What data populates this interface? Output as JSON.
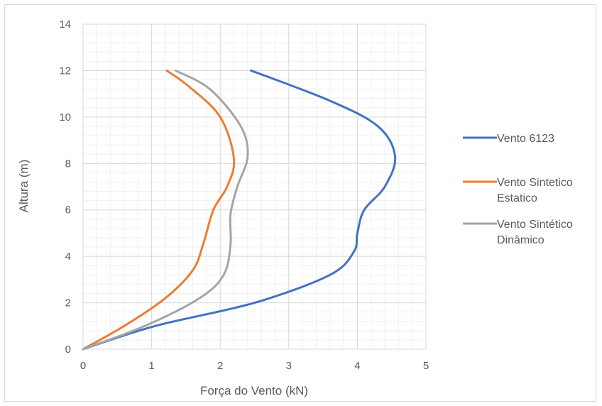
{
  "chart_data": {
    "type": "line",
    "title": "",
    "xlabel": "Força do Vento (kN)",
    "ylabel": "Altura (m)",
    "xlim": [
      0,
      5
    ],
    "ylim": [
      0,
      14
    ],
    "xticks": [
      "0",
      "1",
      "2",
      "3",
      "4",
      "5"
    ],
    "yticks": [
      "0",
      "2",
      "4",
      "6",
      "8",
      "10",
      "12",
      "14"
    ],
    "grid": true,
    "minor_grid": true,
    "legend_position": "right",
    "series": [
      {
        "name": "Vento 6123",
        "legend_lines": [
          "Vento 6123"
        ],
        "color": "#4472c4",
        "x": [
          0,
          1.05,
          2.5,
          3.6,
          3.95,
          4.0,
          4.1,
          4.4,
          4.55,
          4.3,
          3.6,
          2.45
        ],
        "y": [
          0,
          1.0,
          2.0,
          3.2,
          4.2,
          5.0,
          6.0,
          7.0,
          8.3,
          9.6,
          10.7,
          12.0
        ]
      },
      {
        "name": "Vento Sintetico Estatico",
        "legend_lines": [
          "Vento Sintetico",
          "Estatico"
        ],
        "color": "#ed7d31",
        "x": [
          0,
          0.6,
          1.2,
          1.6,
          1.75,
          1.9,
          2.1,
          2.2,
          2.0,
          1.55,
          1.22
        ],
        "y": [
          0,
          1.0,
          2.2,
          3.4,
          4.5,
          6.0,
          7.0,
          8.2,
          10.0,
          11.3,
          12.0
        ]
      },
      {
        "name": "Vento Sintético Dinâmico",
        "legend_lines": [
          "Vento Sintético",
          "Dinâmico"
        ],
        "color": "#a5a5a5",
        "x": [
          0,
          0.9,
          1.7,
          2.05,
          2.15,
          2.15,
          2.25,
          2.4,
          2.3,
          1.85,
          1.35
        ],
        "y": [
          0,
          1.0,
          2.2,
          3.2,
          4.5,
          5.8,
          7.0,
          8.3,
          9.6,
          11.2,
          12.0
        ]
      }
    ]
  }
}
